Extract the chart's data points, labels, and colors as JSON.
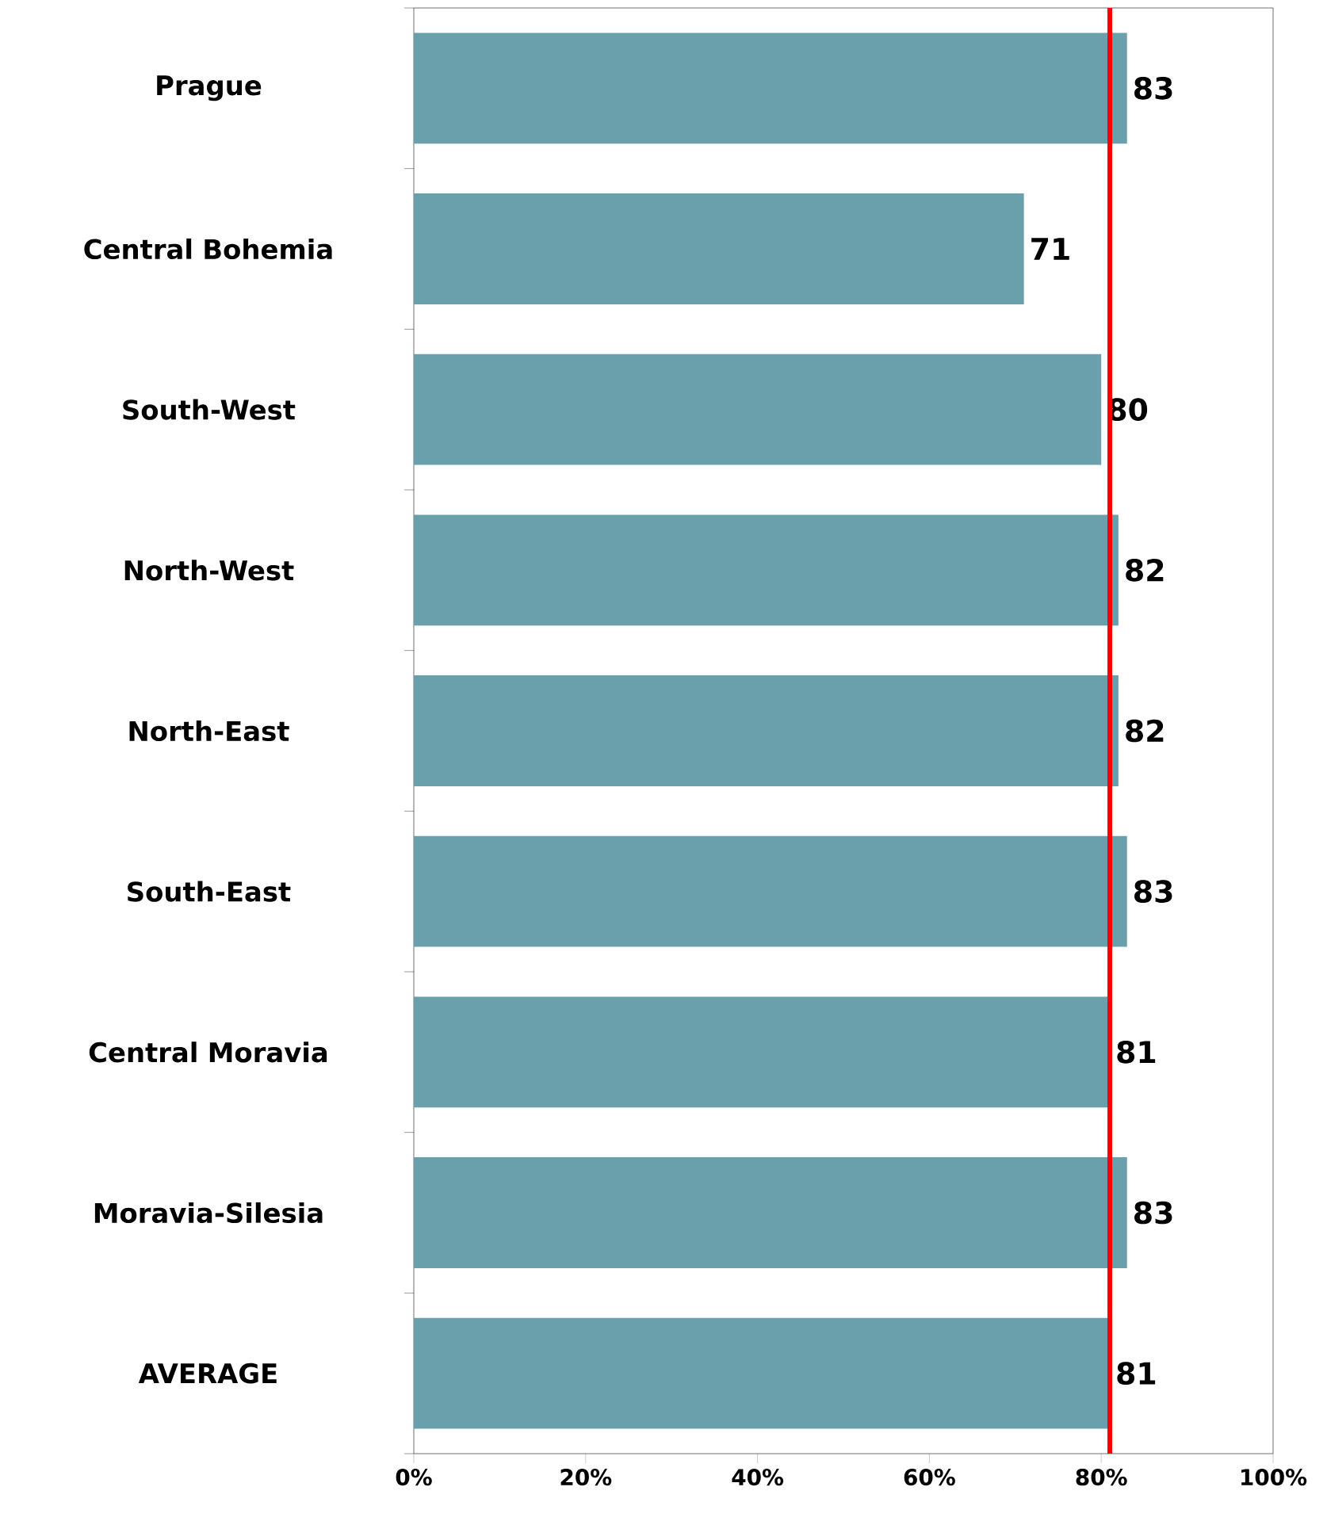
{
  "chart_data": {
    "type": "bar",
    "orientation": "horizontal",
    "categories": [
      "Prague",
      "Central Bohemia",
      "South-West",
      "North-West",
      "North-East",
      "South-East",
      "Central Moravia",
      "Moravia-Silesia",
      "AVERAGE"
    ],
    "values": [
      83,
      71,
      80,
      82,
      82,
      83,
      81,
      83,
      81
    ],
    "color": "#6a9fac",
    "xlim": [
      0,
      100
    ],
    "xticks": [
      {
        "value": 0,
        "label": "0%"
      },
      {
        "value": 20,
        "label": "20%"
      },
      {
        "value": 40,
        "label": "40%"
      },
      {
        "value": 60,
        "label": "60%"
      },
      {
        "value": 80,
        "label": "80%"
      },
      {
        "value": 100,
        "label": "100%"
      }
    ],
    "data_labels": true,
    "ref_lines": [
      {
        "axis": "x",
        "value": 81,
        "color": "#ff0000"
      }
    ]
  }
}
